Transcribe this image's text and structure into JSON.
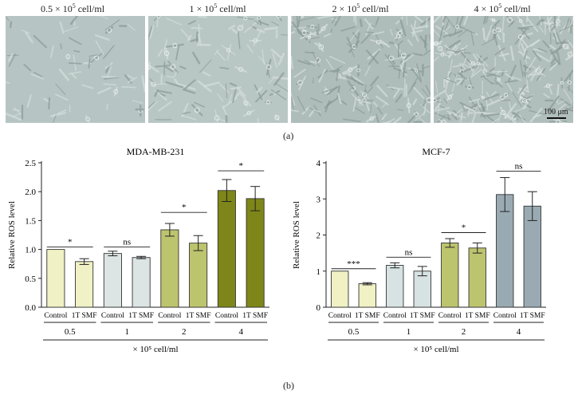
{
  "panel_a": {
    "label": "(a)",
    "images": [
      {
        "label": "0.5 × 10",
        "sup": "5",
        "unit": " cell/ml",
        "density": 0.12,
        "tone": "#b6c5c3"
      },
      {
        "label": "1 × 10",
        "sup": "5",
        "unit": " cell/ml",
        "density": 0.3,
        "tone": "#b9c7c4"
      },
      {
        "label": "2 × 10",
        "sup": "5",
        "unit": " cell/ml",
        "density": 0.6,
        "tone": "#aebdba"
      },
      {
        "label": "4 × 10",
        "sup": "5",
        "unit": " cell/ml",
        "density": 0.9,
        "tone": "#b1bfbc"
      }
    ],
    "scale_bar": "100 μm"
  },
  "panel_b": {
    "label": "(b)"
  },
  "chart_data": [
    {
      "type": "bar",
      "title": "MDA-MB-231",
      "ylabel": "Relative ROS level",
      "ylim": [
        0,
        2.5
      ],
      "yticks": [
        "0.0",
        "0.5",
        "1.0",
        "1.5",
        "2.0",
        "2.5"
      ],
      "groups": [
        "0.5",
        "1",
        "2",
        "4"
      ],
      "categories": [
        "Control",
        "1T SMF",
        "Control",
        "1T SMF",
        "Control",
        "1T SMF",
        "Control",
        "1T SMF"
      ],
      "values": [
        1.0,
        0.79,
        0.93,
        0.86,
        1.34,
        1.11,
        2.02,
        1.88
      ],
      "errors": [
        0,
        0.05,
        0.04,
        0.02,
        0.11,
        0.13,
        0.19,
        0.21
      ],
      "colors": [
        "#f0f1c4",
        "#f0f1c4",
        "#dce4e4",
        "#dce4e4",
        "#bdc46e",
        "#bdc46e",
        "#7e8619",
        "#7e8619"
      ],
      "significance": [
        {
          "group": 0,
          "label": "*",
          "y": 1.0
        },
        {
          "group": 1,
          "label": "ns",
          "y": 1.0
        },
        {
          "group": 2,
          "label": "*",
          "y": 1.6
        },
        {
          "group": 3,
          "label": "*",
          "y": 2.32
        }
      ],
      "xlabel": "× 10⁵ cell/ml"
    },
    {
      "type": "bar",
      "title": "MCF-7",
      "ylabel": "Relative ROS level",
      "ylim": [
        0,
        4
      ],
      "yticks": [
        "0",
        "1",
        "2",
        "3",
        "4"
      ],
      "groups": [
        "0.5",
        "1",
        "2",
        "4"
      ],
      "categories": [
        "Control",
        "1T SMF",
        "Control",
        "1T SMF",
        "Control",
        "1T SMF",
        "Control",
        "1T SMF"
      ],
      "values": [
        1.0,
        0.65,
        1.16,
        1.0,
        1.78,
        1.64,
        3.12,
        2.8
      ],
      "errors": [
        0,
        0.03,
        0.07,
        0.13,
        0.12,
        0.14,
        0.47,
        0.4
      ],
      "colors": [
        "#f0f1c4",
        "#f0f1c4",
        "#d7e2e3",
        "#d7e2e3",
        "#bdc46e",
        "#bdc46e",
        "#9aaab3",
        "#9aaab3"
      ],
      "significance": [
        {
          "group": 0,
          "label": "***",
          "y": 1.0
        },
        {
          "group": 1,
          "label": "ns",
          "y": 1.32
        },
        {
          "group": 2,
          "label": "*",
          "y": 2.0
        },
        {
          "group": 3,
          "label": "ns",
          "y": 3.7
        }
      ],
      "xlabel": "× 10⁵ cell/ml"
    }
  ]
}
